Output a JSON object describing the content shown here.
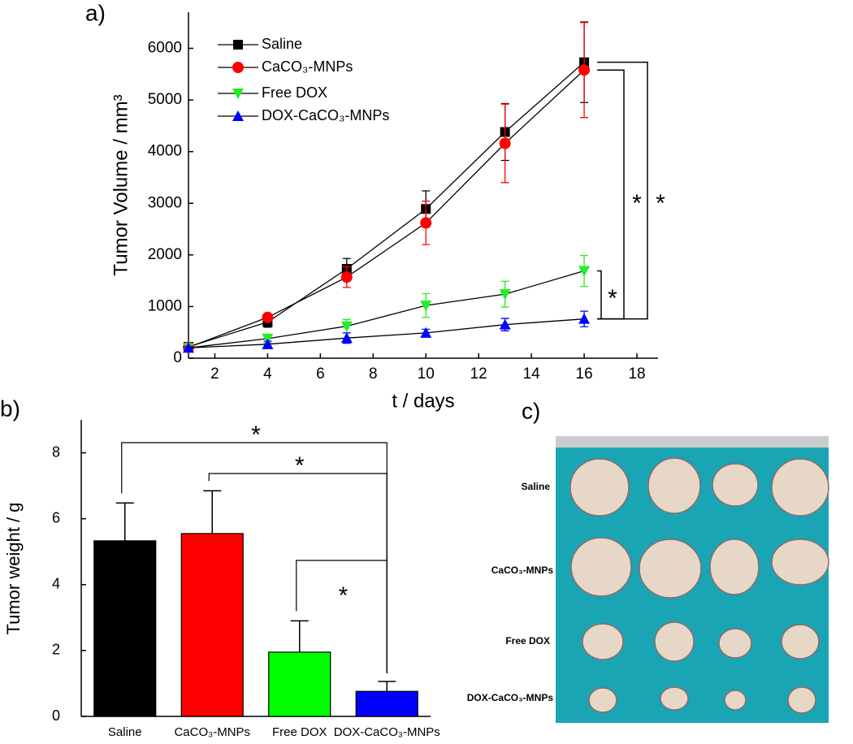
{
  "chart_data": [
    {
      "type": "line",
      "panel": "a)",
      "x_label": "t / days",
      "y_label": "Tumor Volume / mm³",
      "x": [
        1,
        4,
        7,
        10,
        13,
        16
      ],
      "xlim": [
        1,
        18.8
      ],
      "xticks": [
        2,
        4,
        6,
        8,
        10,
        12,
        14,
        16,
        18
      ],
      "ylim": [
        0,
        6700
      ],
      "yticks": [
        0,
        1000,
        2000,
        3000,
        4000,
        5000,
        6000
      ],
      "legend": "upper left",
      "line_color": "#000000",
      "series": [
        {
          "name": "Saline",
          "color": "#000000",
          "marker": "square",
          "values": [
            220,
            700,
            1730,
            2890,
            4380,
            5730
          ],
          "errors": [
            50,
            100,
            200,
            350,
            550,
            780
          ]
        },
        {
          "name": "CaCO₃-MNPs",
          "color": "#ff0000",
          "marker": "circle",
          "values": [
            210,
            790,
            1570,
            2620,
            4160,
            5580
          ],
          "errors": [
            40,
            60,
            200,
            420,
            760,
            920
          ]
        },
        {
          "name": "Free DOX",
          "color": "#22ee22",
          "marker": "triangle-down",
          "values": [
            200,
            380,
            620,
            1020,
            1240,
            1690
          ],
          "errors": [
            40,
            80,
            130,
            230,
            250,
            300
          ]
        },
        {
          "name": "DOX-CaCO₃-MNPs",
          "color": "#0000ff",
          "marker": "triangle-up",
          "values": [
            200,
            270,
            390,
            490,
            650,
            760
          ],
          "errors": [
            30,
            60,
            100,
            70,
            120,
            150
          ]
        }
      ],
      "annotations": [
        "*",
        "*",
        "*"
      ]
    },
    {
      "type": "bar",
      "panel": "b)",
      "y_label": "Tumor weight / g",
      "categories": [
        "Saline",
        "CaCO₃-MNPs",
        "Free DOX",
        "DOX-CaCO₃-MNPs"
      ],
      "values": [
        5.33,
        5.55,
        1.95,
        0.76
      ],
      "errors": [
        1.15,
        1.3,
        0.95,
        0.3
      ],
      "colors": [
        "#000000",
        "#ff0000",
        "#00ff00",
        "#0000ff"
      ],
      "ylim": [
        0,
        9
      ],
      "yticks": [
        0,
        2,
        4,
        6,
        8
      ],
      "annotations": [
        "*",
        "*",
        "*"
      ]
    }
  ],
  "photo": {
    "panel": "c)",
    "labels": [
      "Saline",
      "CaCO₃-MNPs",
      "Free DOX",
      "DOX-CaCO₃-MNPs"
    ]
  }
}
